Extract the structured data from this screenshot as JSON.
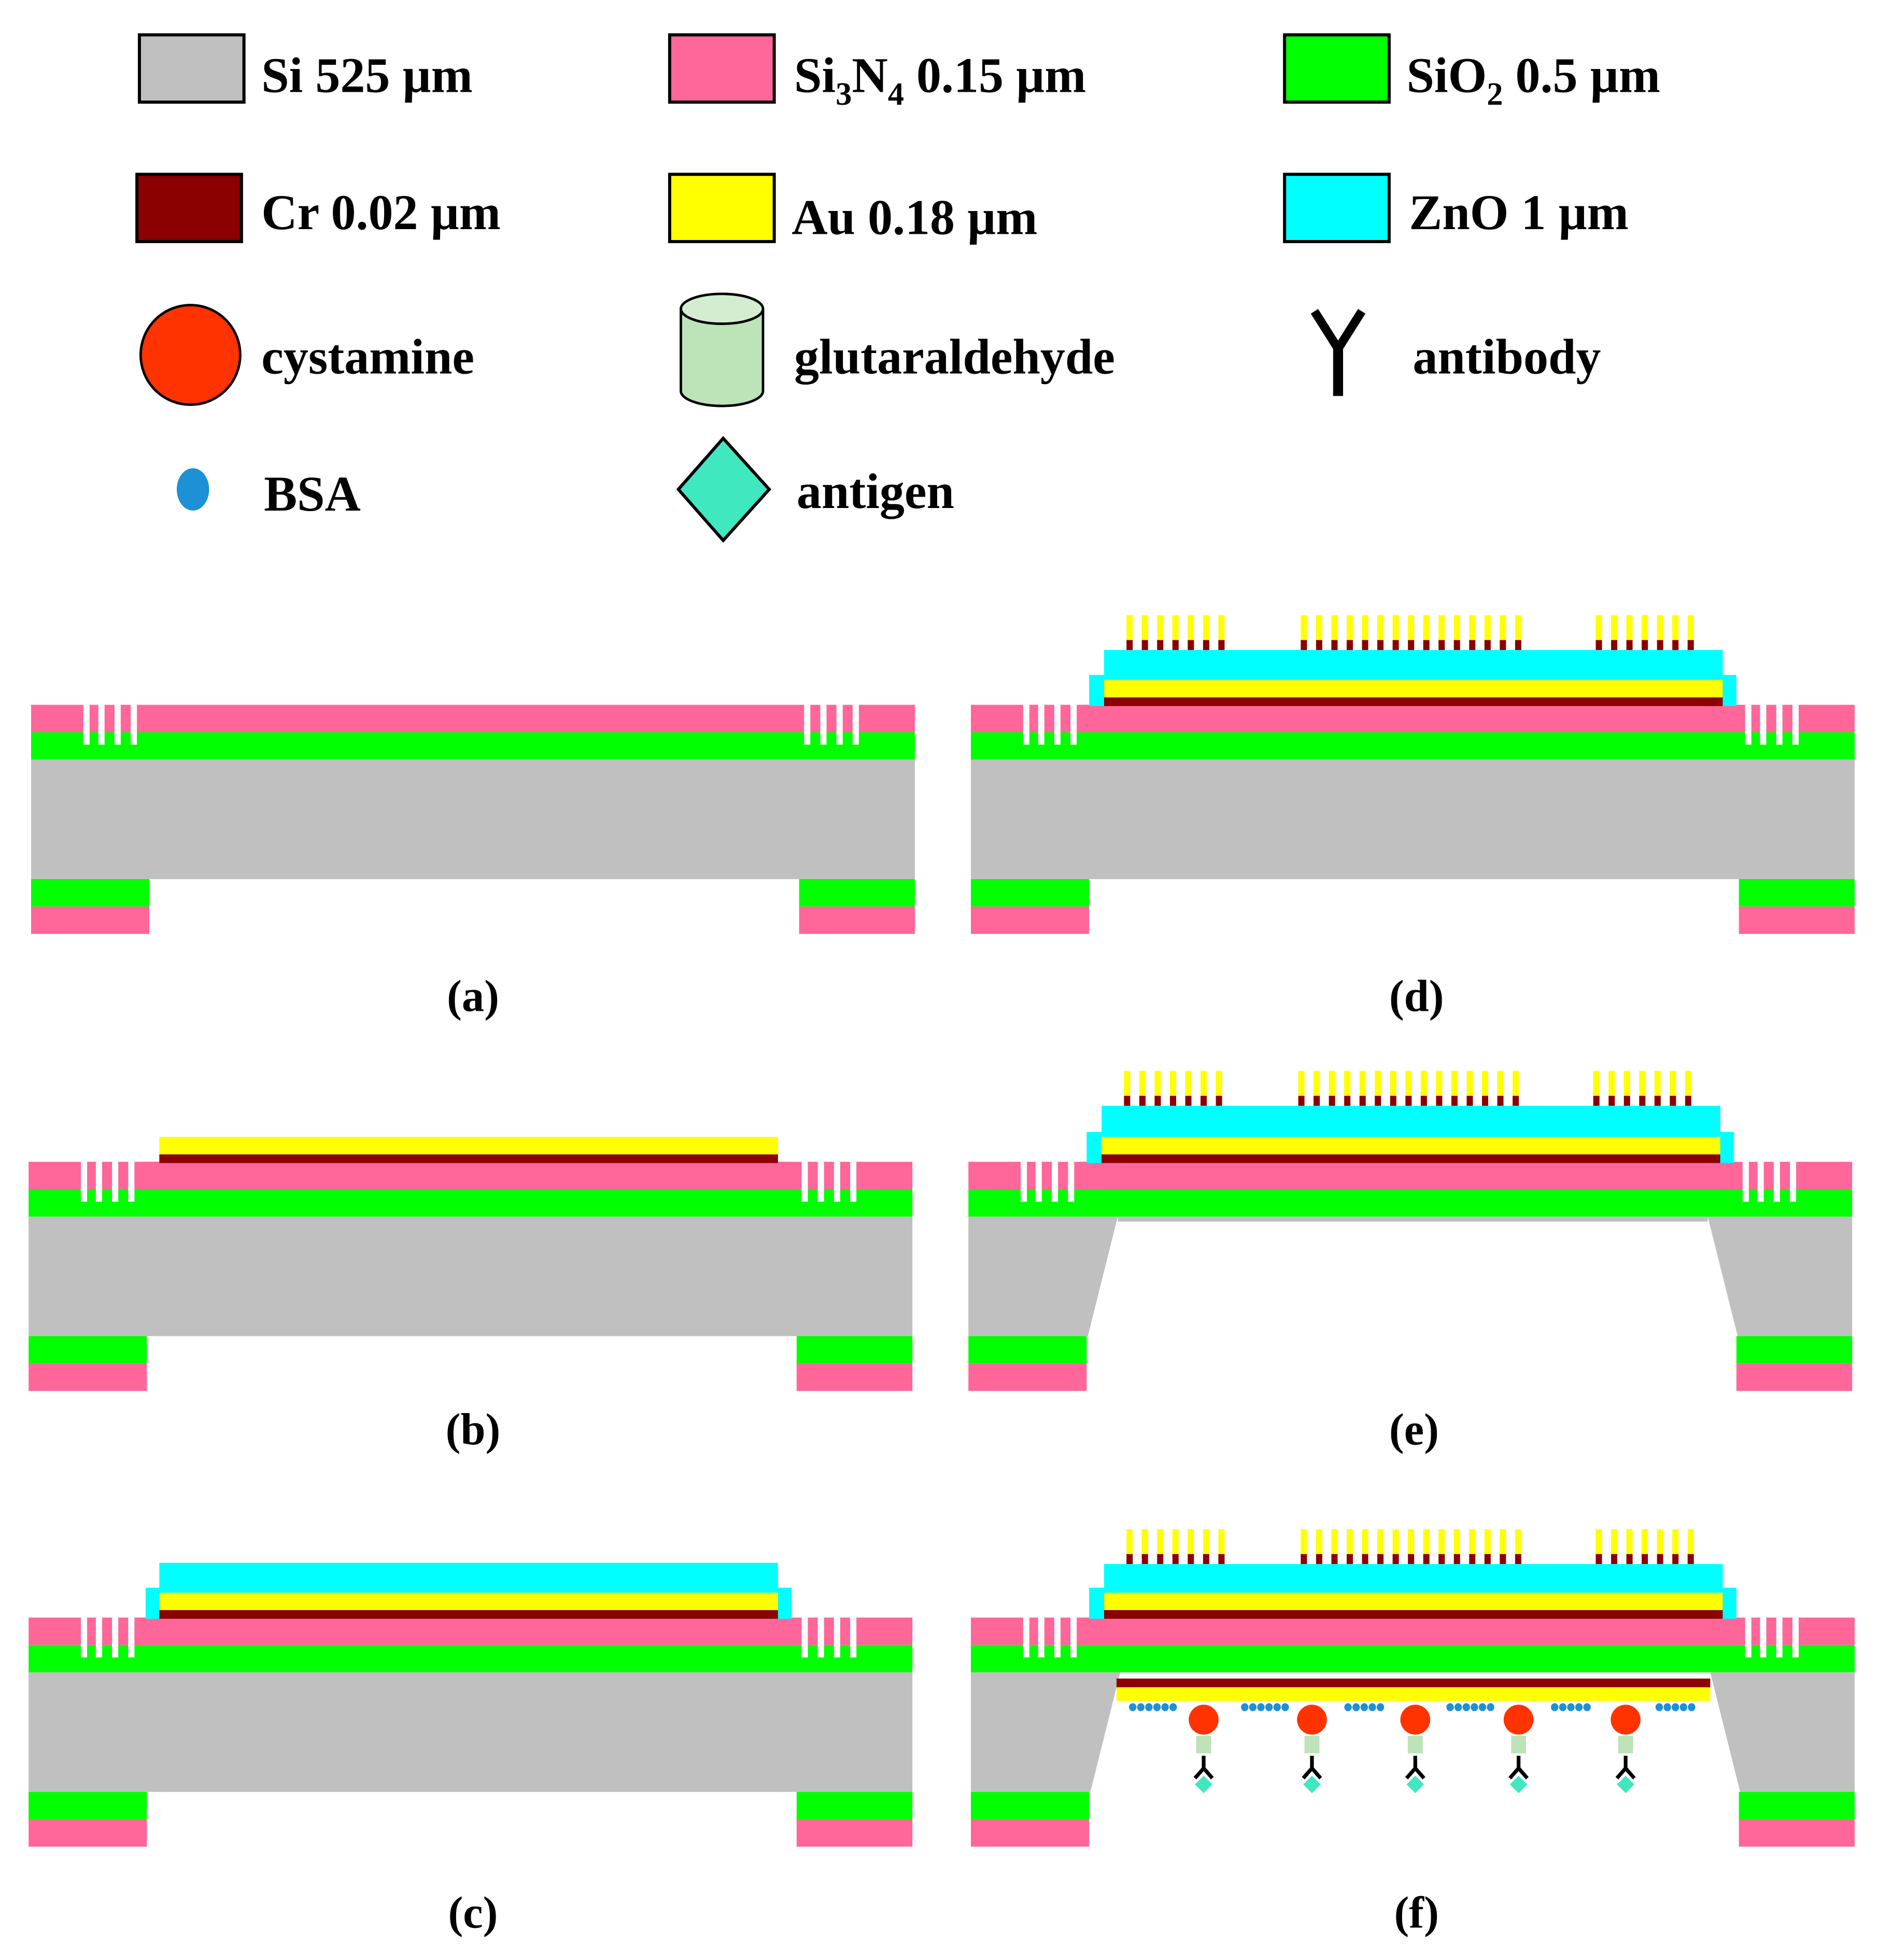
{
  "legend": {
    "si": {
      "label": "Si 525 µm",
      "color": "#c0c0c0"
    },
    "si3n4": {
      "label_main": "Si",
      "sub1": "3",
      "mid": "N",
      "sub2": "4",
      "tail": " 0.15 µm",
      "color": "#ff6699"
    },
    "sio2": {
      "label_main": "SiO",
      "sub": "2",
      "tail": " 0.5 µm",
      "color": "#00ff00"
    },
    "cr": {
      "label": "Cr 0.02 µm",
      "color": "#8b0000"
    },
    "au": {
      "label": "Au 0.18 µm",
      "color": "#ffff00"
    },
    "zno": {
      "label": "ZnO 1 µm",
      "color": "#00ffff"
    },
    "cystamine": {
      "label": "cystamine",
      "color": "#ff3300"
    },
    "glutaraldehyde": {
      "label": "glutaraldehyde",
      "color": "#bde3b8"
    },
    "antibody": {
      "label": "antibody",
      "color": "#000000"
    },
    "bsa": {
      "label": "BSA",
      "color": "#1e90d6"
    },
    "antigen": {
      "label": "antigen",
      "color": "#40e8c0"
    }
  },
  "panels": [
    {
      "caption": "(a)",
      "layers": [
        "si",
        "sio2",
        "si3n4"
      ],
      "backside_etched": false,
      "biofunctionalized": false
    },
    {
      "caption": "(d)",
      "layers": [
        "si",
        "sio2",
        "si3n4",
        "cr",
        "au",
        "zno",
        "idt"
      ],
      "backside_etched": false,
      "biofunctionalized": false
    },
    {
      "caption": "(b)",
      "layers": [
        "si",
        "sio2",
        "si3n4",
        "cr",
        "au"
      ],
      "backside_etched": false,
      "biofunctionalized": false
    },
    {
      "caption": "(e)",
      "layers": [
        "si",
        "sio2",
        "si3n4",
        "cr",
        "au",
        "zno",
        "idt"
      ],
      "backside_etched": true,
      "biofunctionalized": false
    },
    {
      "caption": "(c)",
      "layers": [
        "si",
        "sio2",
        "si3n4",
        "cr",
        "au",
        "zno"
      ],
      "backside_etched": false,
      "biofunctionalized": false
    },
    {
      "caption": "(f)",
      "layers": [
        "si",
        "sio2",
        "si3n4",
        "cr",
        "au",
        "zno",
        "idt"
      ],
      "backside_etched": true,
      "biofunctionalized": true
    }
  ]
}
